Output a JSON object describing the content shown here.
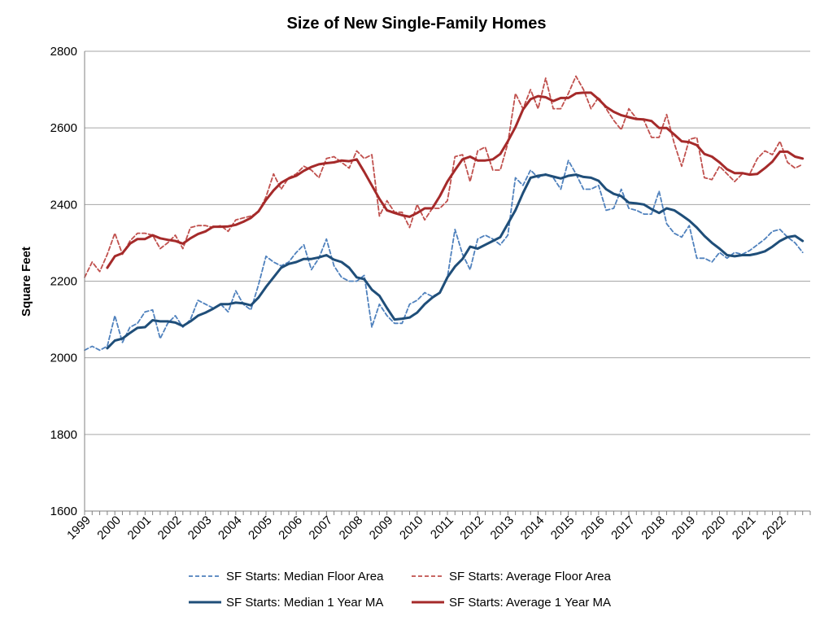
{
  "chart_data": {
    "type": "line",
    "title": "Size of New Single-Family Homes",
    "ylabel": "Square Feet",
    "xlabel": "",
    "ylim": [
      1600,
      2800
    ],
    "yticks": [
      1600,
      1800,
      2000,
      2200,
      2400,
      2600,
      2800
    ],
    "xlim": [
      1999.0,
      2022.95
    ],
    "xticks": [
      "1999",
      "2000",
      "2001",
      "2002",
      "2003",
      "2004",
      "2005",
      "2006",
      "2007",
      "2008",
      "2009",
      "2010",
      "2011",
      "2012",
      "2013",
      "2014",
      "2015",
      "2016",
      "2017",
      "2018",
      "2019",
      "2020",
      "2021",
      "2022"
    ],
    "grid": "horizontal",
    "legend_position": "bottom",
    "colors": {
      "median": "#4f81bd",
      "median_ma": "#1f4e79",
      "average": "#c0504d",
      "average_ma": "#a52a2a"
    },
    "series": [
      {
        "name": "SF Starts: Median Floor Area",
        "style": "dashed",
        "color": "#4f81bd",
        "x": [
          1999.0,
          1999.25,
          1999.5,
          1999.75,
          2000.0,
          2000.25,
          2000.5,
          2000.75,
          2001.0,
          2001.25,
          2001.5,
          2001.75,
          2002.0,
          2002.25,
          2002.5,
          2002.75,
          2003.0,
          2003.25,
          2003.5,
          2003.75,
          2004.0,
          2004.25,
          2004.5,
          2004.75,
          2005.0,
          2005.25,
          2005.5,
          2005.75,
          2006.0,
          2006.25,
          2006.5,
          2006.75,
          2007.0,
          2007.25,
          2007.5,
          2007.75,
          2008.0,
          2008.25,
          2008.5,
          2008.75,
          2009.0,
          2009.25,
          2009.5,
          2009.75,
          2010.0,
          2010.25,
          2010.5,
          2010.75,
          2011.0,
          2011.25,
          2011.5,
          2011.75,
          2012.0,
          2012.25,
          2012.5,
          2012.75,
          2013.0,
          2013.25,
          2013.5,
          2013.75,
          2014.0,
          2014.25,
          2014.5,
          2014.75,
          2015.0,
          2015.25,
          2015.5,
          2015.75,
          2016.0,
          2016.25,
          2016.5,
          2016.75,
          2017.0,
          2017.25,
          2017.5,
          2017.75,
          2018.0,
          2018.25,
          2018.5,
          2018.75,
          2019.0,
          2019.25,
          2019.5,
          2019.75,
          2020.0,
          2020.25,
          2020.5,
          2020.75,
          2021.0,
          2021.25,
          2021.5,
          2021.75,
          2022.0,
          2022.25,
          2022.5,
          2022.75
        ],
        "y": [
          2020,
          2030,
          2020,
          2030,
          2110,
          2040,
          2080,
          2090,
          2120,
          2125,
          2050,
          2090,
          2110,
          2080,
          2100,
          2150,
          2140,
          2130,
          2140,
          2120,
          2175,
          2140,
          2125,
          2190,
          2265,
          2250,
          2240,
          2250,
          2275,
          2295,
          2230,
          2260,
          2310,
          2240,
          2210,
          2200,
          2200,
          2215,
          2080,
          2140,
          2110,
          2090,
          2090,
          2140,
          2150,
          2170,
          2160,
          2170,
          2210,
          2335,
          2270,
          2230,
          2310,
          2320,
          2310,
          2295,
          2320,
          2470,
          2450,
          2490,
          2470,
          2480,
          2470,
          2440,
          2515,
          2480,
          2440,
          2440,
          2450,
          2385,
          2390,
          2440,
          2390,
          2385,
          2375,
          2375,
          2435,
          2350,
          2325,
          2315,
          2345,
          2260,
          2260,
          2250,
          2275,
          2260,
          2275,
          2270,
          2280,
          2295,
          2310,
          2330,
          2335,
          2315,
          2300,
          2275
        ]
      },
      {
        "name": "SF Starts: Average Floor Area",
        "style": "dashed",
        "color": "#c0504d",
        "x": [
          1999.0,
          1999.25,
          1999.5,
          1999.75,
          2000.0,
          2000.25,
          2000.5,
          2000.75,
          2001.0,
          2001.25,
          2001.5,
          2001.75,
          2002.0,
          2002.25,
          2002.5,
          2002.75,
          2003.0,
          2003.25,
          2003.5,
          2003.75,
          2004.0,
          2004.25,
          2004.5,
          2004.75,
          2005.0,
          2005.25,
          2005.5,
          2005.75,
          2006.0,
          2006.25,
          2006.5,
          2006.75,
          2007.0,
          2007.25,
          2007.5,
          2007.75,
          2008.0,
          2008.25,
          2008.5,
          2008.75,
          2009.0,
          2009.25,
          2009.5,
          2009.75,
          2010.0,
          2010.25,
          2010.5,
          2010.75,
          2011.0,
          2011.25,
          2011.5,
          2011.75,
          2012.0,
          2012.25,
          2012.5,
          2012.75,
          2013.0,
          2013.25,
          2013.5,
          2013.75,
          2014.0,
          2014.25,
          2014.5,
          2014.75,
          2015.0,
          2015.25,
          2015.5,
          2015.75,
          2016.0,
          2016.25,
          2016.5,
          2016.75,
          2017.0,
          2017.25,
          2017.5,
          2017.75,
          2018.0,
          2018.25,
          2018.5,
          2018.75,
          2019.0,
          2019.25,
          2019.5,
          2019.75,
          2020.0,
          2020.25,
          2020.5,
          2020.75,
          2021.0,
          2021.25,
          2021.5,
          2021.75,
          2022.0,
          2022.25,
          2022.5,
          2022.75
        ],
        "y": [
          2210,
          2250,
          2225,
          2270,
          2325,
          2270,
          2305,
          2325,
          2325,
          2320,
          2285,
          2300,
          2320,
          2285,
          2340,
          2345,
          2345,
          2340,
          2345,
          2330,
          2360,
          2365,
          2370,
          2380,
          2420,
          2480,
          2440,
          2470,
          2480,
          2500,
          2490,
          2470,
          2520,
          2525,
          2510,
          2495,
          2540,
          2520,
          2530,
          2370,
          2410,
          2380,
          2380,
          2340,
          2400,
          2360,
          2390,
          2390,
          2410,
          2525,
          2530,
          2460,
          2540,
          2550,
          2490,
          2490,
          2560,
          2690,
          2650,
          2700,
          2650,
          2730,
          2650,
          2650,
          2690,
          2735,
          2700,
          2650,
          2680,
          2650,
          2620,
          2595,
          2650,
          2625,
          2620,
          2575,
          2575,
          2635,
          2560,
          2500,
          2570,
          2575,
          2470,
          2465,
          2500,
          2480,
          2460,
          2480,
          2480,
          2520,
          2540,
          2530,
          2565,
          2510,
          2495,
          2505
        ]
      },
      {
        "name": "SF Starts: Median 1 Year MA",
        "style": "solid",
        "color": "#1f4e79",
        "x": [
          1999.75,
          2000.0,
          2000.25,
          2000.5,
          2000.75,
          2001.0,
          2001.25,
          2001.5,
          2001.75,
          2002.0,
          2002.25,
          2002.5,
          2002.75,
          2003.0,
          2003.25,
          2003.5,
          2003.75,
          2004.0,
          2004.25,
          2004.5,
          2004.75,
          2005.0,
          2005.25,
          2005.5,
          2005.75,
          2006.0,
          2006.25,
          2006.5,
          2006.75,
          2007.0,
          2007.25,
          2007.5,
          2007.75,
          2008.0,
          2008.25,
          2008.5,
          2008.75,
          2009.0,
          2009.25,
          2009.5,
          2009.75,
          2010.0,
          2010.25,
          2010.5,
          2010.75,
          2011.0,
          2011.25,
          2011.5,
          2011.75,
          2012.0,
          2012.25,
          2012.5,
          2012.75,
          2013.0,
          2013.25,
          2013.5,
          2013.75,
          2014.0,
          2014.25,
          2014.5,
          2014.75,
          2015.0,
          2015.25,
          2015.5,
          2015.75,
          2016.0,
          2016.25,
          2016.5,
          2016.75,
          2017.0,
          2017.25,
          2017.5,
          2017.75,
          2018.0,
          2018.25,
          2018.5,
          2018.75,
          2019.0,
          2019.25,
          2019.5,
          2019.75,
          2020.0,
          2020.25,
          2020.5,
          2020.75,
          2021.0,
          2021.25,
          2021.5,
          2021.75,
          2022.0,
          2022.25,
          2022.5,
          2022.75
        ],
        "y": [
          2025,
          2045,
          2050,
          2065,
          2078,
          2080,
          2098,
          2095,
          2095,
          2092,
          2083,
          2095,
          2110,
          2118,
          2128,
          2140,
          2140,
          2144,
          2142,
          2137,
          2157,
          2185,
          2210,
          2235,
          2245,
          2250,
          2258,
          2258,
          2262,
          2268,
          2256,
          2250,
          2235,
          2210,
          2205,
          2178,
          2162,
          2130,
          2100,
          2102,
          2105,
          2118,
          2140,
          2157,
          2170,
          2210,
          2238,
          2258,
          2290,
          2285,
          2295,
          2305,
          2315,
          2350,
          2385,
          2430,
          2470,
          2475,
          2478,
          2473,
          2468,
          2475,
          2478,
          2472,
          2470,
          2462,
          2440,
          2428,
          2422,
          2405,
          2403,
          2400,
          2388,
          2378,
          2390,
          2385,
          2372,
          2358,
          2340,
          2318,
          2300,
          2285,
          2268,
          2265,
          2268,
          2268,
          2272,
          2278,
          2290,
          2305,
          2315,
          2318,
          2305
        ]
      },
      {
        "name": "SF Starts: Average 1 Year MA",
        "style": "solid",
        "color": "#a52a2a",
        "x": [
          1999.75,
          2000.0,
          2000.25,
          2000.5,
          2000.75,
          2001.0,
          2001.25,
          2001.5,
          2001.75,
          2002.0,
          2002.25,
          2002.5,
          2002.75,
          2003.0,
          2003.25,
          2003.5,
          2003.75,
          2004.0,
          2004.25,
          2004.5,
          2004.75,
          2005.0,
          2005.25,
          2005.5,
          2005.75,
          2006.0,
          2006.25,
          2006.5,
          2006.75,
          2007.0,
          2007.25,
          2007.5,
          2007.75,
          2008.0,
          2008.25,
          2008.5,
          2008.75,
          2009.0,
          2009.25,
          2009.5,
          2009.75,
          2010.0,
          2010.25,
          2010.5,
          2010.75,
          2011.0,
          2011.25,
          2011.5,
          2011.75,
          2012.0,
          2012.25,
          2012.5,
          2012.75,
          2013.0,
          2013.25,
          2013.5,
          2013.75,
          2014.0,
          2014.25,
          2014.5,
          2014.75,
          2015.0,
          2015.25,
          2015.5,
          2015.75,
          2016.0,
          2016.25,
          2016.5,
          2016.75,
          2017.0,
          2017.25,
          2017.5,
          2017.75,
          2018.0,
          2018.25,
          2018.5,
          2018.75,
          2019.0,
          2019.25,
          2019.5,
          2019.75,
          2020.0,
          2020.25,
          2020.5,
          2020.75,
          2021.0,
          2021.25,
          2021.5,
          2021.75,
          2022.0,
          2022.25,
          2022.5,
          2022.75
        ],
        "y": [
          2235,
          2265,
          2273,
          2298,
          2310,
          2310,
          2320,
          2312,
          2308,
          2305,
          2298,
          2312,
          2323,
          2330,
          2342,
          2342,
          2343,
          2347,
          2355,
          2365,
          2382,
          2412,
          2437,
          2457,
          2468,
          2475,
          2488,
          2498,
          2505,
          2508,
          2510,
          2515,
          2513,
          2518,
          2485,
          2450,
          2415,
          2385,
          2378,
          2372,
          2368,
          2378,
          2390,
          2390,
          2422,
          2460,
          2490,
          2518,
          2525,
          2515,
          2515,
          2518,
          2532,
          2565,
          2602,
          2648,
          2675,
          2683,
          2680,
          2670,
          2678,
          2678,
          2690,
          2692,
          2692,
          2675,
          2655,
          2642,
          2633,
          2628,
          2623,
          2622,
          2618,
          2600,
          2600,
          2583,
          2565,
          2563,
          2555,
          2532,
          2525,
          2510,
          2492,
          2482,
          2482,
          2478,
          2480,
          2495,
          2512,
          2538,
          2538,
          2525,
          2520
        ]
      }
    ]
  }
}
